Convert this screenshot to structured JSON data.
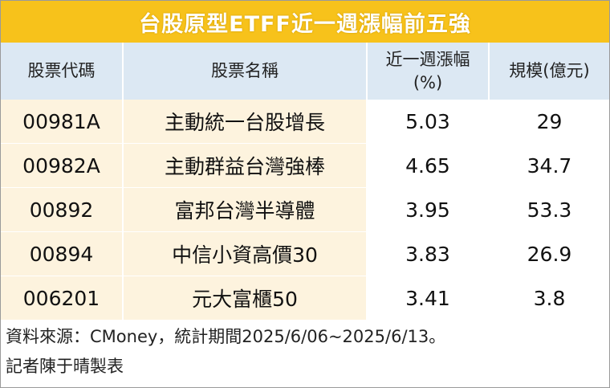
{
  "title": "台股原型ETFF近一週漲幅前五強",
  "headers": {
    "code": "股票代碼",
    "name": "股票名稱",
    "change_line1": "近一週漲幅",
    "change_line2": "(%)",
    "size": "規模(億元)"
  },
  "rows": [
    {
      "code": "00981A",
      "name": "主動統一台股增長",
      "change": "5.03",
      "size": "29"
    },
    {
      "code": "00982A",
      "name": "主動群益台灣強棒",
      "change": "4.65",
      "size": "34.7"
    },
    {
      "code": "00892",
      "name": "富邦台灣半導體",
      "change": "3.95",
      "size": "53.3"
    },
    {
      "code": "00894",
      "name": "中信小資高價30",
      "change": "3.83",
      "size": "26.9"
    },
    {
      "code": "006201",
      "name": "元大富櫃50",
      "change": "3.41",
      "size": "3.8"
    }
  ],
  "footer": {
    "source": "資料來源：CMoney，統計期間2025/6/06~2025/6/13。",
    "credit": "記者陳于晴製表"
  }
}
